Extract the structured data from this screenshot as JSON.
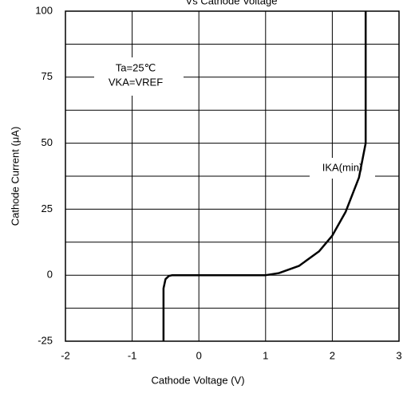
{
  "chart_data": {
    "type": "line",
    "title": "Vs Cathode Voltage",
    "x_label": "Cathode Voltage   (V)",
    "y_label": "Cathode Current (μA)",
    "annotations": [
      "Ta=25℃",
      "VKA=VREF",
      "IKA(min)"
    ],
    "series": [
      {
        "name": "IKA(min)",
        "color": "#000000",
        "x": [
          -0.53,
          -0.53,
          -0.5,
          -0.45,
          -0.4,
          0,
          0.5,
          1,
          1.2,
          1.5,
          1.8,
          2,
          2.2,
          2.4,
          2.5,
          2.5,
          2.5
        ],
        "values": [
          -25,
          -5,
          -1.5,
          -0.3,
          0,
          0,
          0,
          0,
          0.8,
          3.5,
          9,
          15,
          24,
          37,
          50,
          75,
          100
        ]
      }
    ],
    "xlim": [
      -2,
      3
    ],
    "xticks": [
      -2,
      -1,
      0,
      1,
      2,
      3
    ],
    "ylim": [
      -25,
      100
    ],
    "yticks": [
      -25,
      0,
      25,
      50,
      75,
      100
    ],
    "y_minor_grid": [
      -12.5,
      12.5,
      37.5,
      62.5,
      87.5
    ],
    "grid": true
  }
}
